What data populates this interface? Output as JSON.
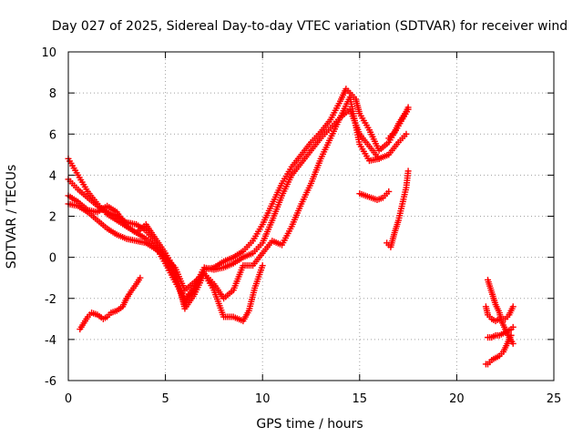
{
  "chart_data": {
    "type": "scatter",
    "title": "Day 027 of 2025, Sidereal Day-to-day VTEC variation (SDTVAR) for receiver wind",
    "xlabel": "GPS time / hours",
    "ylabel": "SDTVAR / TECUs",
    "xlim": [
      0,
      25
    ],
    "ylim": [
      -6,
      10
    ],
    "xticks": [
      "0",
      "5",
      "10",
      "15",
      "20",
      "25"
    ],
    "yticks": [
      "-6",
      "-4",
      "-2",
      "0",
      "2",
      "4",
      "6",
      "8",
      "10"
    ],
    "grid": true,
    "legend": "none",
    "marker": "plus",
    "color": "#ff0000",
    "series": [
      {
        "x": [
          0.0,
          0.5,
          1.0,
          1.5,
          2.0,
          2.5,
          3.0,
          3.5,
          4.0,
          4.5,
          5.0,
          5.5,
          6.0,
          6.5,
          7.0,
          7.5,
          8.0,
          8.5,
          9.0,
          9.5,
          10.0,
          10.5,
          11.0,
          11.5,
          12.0,
          12.5,
          13.0,
          13.5,
          14.0,
          14.3,
          14.8,
          15.0,
          15.5,
          16.0,
          16.5,
          17.0,
          17.5
        ],
        "y": [
          4.8,
          4.0,
          3.2,
          2.6,
          2.1,
          1.8,
          1.5,
          1.2,
          0.9,
          0.5,
          -0.3,
          -1.2,
          -2.0,
          -1.5,
          -0.6,
          -0.5,
          -0.2,
          0.0,
          0.3,
          0.8,
          1.6,
          2.6,
          3.6,
          4.4,
          5.0,
          5.6,
          6.1,
          6.7,
          7.6,
          8.2,
          7.7,
          7.0,
          6.2,
          5.2,
          5.6,
          6.4,
          7.2
        ]
      },
      {
        "x": [
          0.0,
          0.5,
          1.0,
          1.5,
          2.0,
          2.5,
          3.0,
          3.5,
          4.0,
          4.5,
          5.0,
          5.5,
          6.0,
          6.5,
          7.0,
          7.5,
          8.0,
          8.5,
          9.0,
          9.5,
          10.0,
          10.5,
          11.0,
          11.5,
          12.0,
          12.5,
          13.0,
          13.5,
          14.0,
          14.5,
          15.0,
          15.5,
          16.0,
          16.5,
          17.0,
          17.4
        ],
        "y": [
          3.8,
          3.3,
          2.9,
          2.5,
          2.2,
          2.0,
          1.7,
          1.6,
          1.3,
          0.7,
          -0.1,
          -1.0,
          -2.3,
          -1.4,
          -0.5,
          -0.6,
          -0.5,
          -0.3,
          0.0,
          0.2,
          0.7,
          1.8,
          3.0,
          4.0,
          4.6,
          5.2,
          5.8,
          6.3,
          6.8,
          7.2,
          6.0,
          5.4,
          4.8,
          5.0,
          5.6,
          6.0
        ]
      },
      {
        "x": [
          0.0,
          0.5,
          1.0,
          1.5,
          2.0,
          2.5,
          3.0,
          3.5,
          4.0,
          4.5,
          5.0,
          5.5,
          6.0,
          6.5,
          7.0,
          7.5,
          8.0,
          8.5,
          9.0,
          9.5,
          10.0,
          10.5,
          11.0,
          11.5,
          12.0,
          12.5,
          13.0,
          13.5,
          14.0,
          14.5,
          15.0,
          15.5,
          16.0
        ],
        "y": [
          3.0,
          2.7,
          2.3,
          2.2,
          2.5,
          2.2,
          1.5,
          1.2,
          1.6,
          0.9,
          0.2,
          -0.6,
          -2.5,
          -1.8,
          -0.8,
          -1.3,
          -2.0,
          -1.6,
          -0.4,
          -0.4,
          0.2,
          0.8,
          0.6,
          1.5,
          2.6,
          3.6,
          4.8,
          5.8,
          6.8,
          7.8,
          5.5,
          4.7,
          4.8
        ]
      },
      {
        "x": [
          0.0,
          0.5,
          1.0,
          1.5,
          2.0,
          2.5,
          3.0,
          3.5,
          4.0,
          4.5,
          5.0,
          5.5,
          6.0,
          6.5,
          7.0,
          7.5,
          8.0,
          8.5,
          9.0,
          9.3,
          9.6,
          10.0
        ],
        "y": [
          2.6,
          2.5,
          2.2,
          1.8,
          1.4,
          1.1,
          0.9,
          0.8,
          0.7,
          0.4,
          0.0,
          -0.5,
          -1.6,
          -1.2,
          -0.8,
          -1.6,
          -2.9,
          -2.9,
          -3.1,
          -2.6,
          -1.5,
          -0.4
        ]
      },
      {
        "x": [
          0.6,
          0.8,
          1.0,
          1.2,
          1.5,
          1.8,
          2.0,
          2.2,
          2.5,
          2.8,
          3.0,
          3.2,
          3.5,
          3.7
        ],
        "y": [
          -3.5,
          -3.2,
          -2.9,
          -2.7,
          -2.8,
          -3.0,
          -2.9,
          -2.7,
          -2.6,
          -2.4,
          -2.0,
          -1.7,
          -1.3,
          -1.0
        ]
      },
      {
        "x": [
          15.0,
          15.3,
          15.6,
          15.9,
          16.2,
          16.5
        ],
        "y": [
          3.1,
          3.0,
          2.9,
          2.8,
          2.9,
          3.2
        ]
      },
      {
        "x": [
          16.4,
          16.6,
          16.8,
          17.0,
          17.2,
          17.4,
          17.5
        ],
        "y": [
          0.7,
          0.5,
          1.2,
          1.8,
          2.6,
          3.4,
          4.2
        ]
      },
      {
        "x": [
          16.5,
          16.8,
          17.0,
          17.2,
          17.4,
          17.5
        ],
        "y": [
          5.8,
          6.1,
          6.5,
          6.8,
          7.1,
          7.3
        ]
      },
      {
        "x": [
          21.5,
          21.6,
          21.7,
          21.8,
          22.0,
          22.2,
          22.4,
          22.6,
          22.8
        ],
        "y": [
          -5.2,
          -5.2,
          -5.1,
          -5.0,
          -4.9,
          -4.8,
          -4.6,
          -4.2,
          -3.8
        ]
      },
      {
        "x": [
          21.6,
          21.8,
          22.0,
          22.2,
          22.4,
          22.6,
          22.8,
          22.9
        ],
        "y": [
          -3.9,
          -3.9,
          -3.8,
          -3.8,
          -3.7,
          -3.6,
          -3.5,
          -3.4
        ]
      },
      {
        "x": [
          21.5,
          21.6,
          21.8,
          22.0,
          22.2,
          22.5,
          22.7,
          22.9
        ],
        "y": [
          -2.4,
          -2.8,
          -3.0,
          -3.1,
          -3.0,
          -3.0,
          -2.8,
          -2.4
        ]
      },
      {
        "x": [
          21.6,
          21.7,
          21.8,
          21.9,
          22.0,
          22.2,
          22.3,
          22.5,
          22.7,
          22.9
        ],
        "y": [
          -1.1,
          -1.4,
          -1.7,
          -2.0,
          -2.3,
          -2.7,
          -3.1,
          -3.5,
          -3.9,
          -4.2
        ]
      }
    ]
  }
}
